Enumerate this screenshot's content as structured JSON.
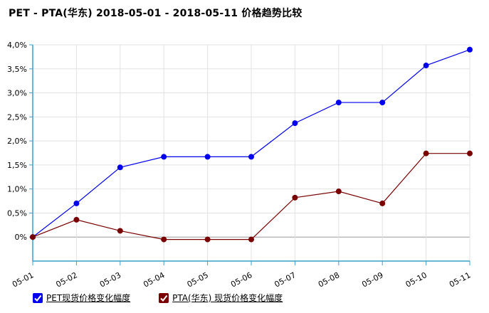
{
  "title": "PET - PTA(华东) 2018-05-01 - 2018-05-11 价格趋势比较",
  "colors": {
    "axis": "#3aa0c8",
    "grid": "#e2e2e2",
    "zero": "#999999"
  },
  "chart_data": {
    "type": "line",
    "title": "PET - PTA(华东) 2018-05-01 - 2018-05-11 价格趋势比较",
    "categories": [
      "05-01",
      "05-02",
      "05-03",
      "05-04",
      "05-05",
      "05-06",
      "05-07",
      "05-08",
      "05-09",
      "05-10",
      "05-11"
    ],
    "y_ticks": [
      "4,0%",
      "3,5%",
      "3,0%",
      "2,5%",
      "2,0%",
      "1,5%",
      "1,0%",
      "0,5%",
      "0%"
    ],
    "y_tick_values": [
      4.0,
      3.5,
      3.0,
      2.5,
      2.0,
      1.5,
      1.0,
      0.5,
      0
    ],
    "ylim": [
      -0.5,
      4.0
    ],
    "grid": true,
    "legend_position": "bottom-left",
    "series": [
      {
        "name": "PET现货价格变化幅度",
        "color": "#0000ee",
        "values": [
          0,
          0.7,
          1.45,
          1.67,
          1.67,
          1.67,
          2.37,
          2.8,
          2.8,
          3.57,
          3.9
        ]
      },
      {
        "name": "PTA(华东) 现货价格变化幅度",
        "color": "#7a0000",
        "values": [
          0,
          0.36,
          0.13,
          -0.05,
          -0.05,
          -0.05,
          0.82,
          0.95,
          0.7,
          1.74,
          1.74
        ]
      }
    ]
  }
}
